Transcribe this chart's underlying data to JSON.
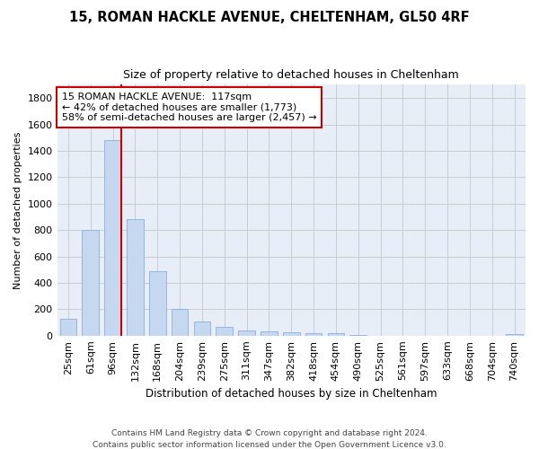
{
  "title": "15, ROMAN HACKLE AVENUE, CHELTENHAM, GL50 4RF",
  "subtitle": "Size of property relative to detached houses in Cheltenham",
  "xlabel": "Distribution of detached houses by size in Cheltenham",
  "ylabel": "Number of detached properties",
  "bar_color": "#c5d8f0",
  "bar_edgecolor": "#8ab0d8",
  "grid_color": "#cccccc",
  "background_color": "#ffffff",
  "plot_bg_color": "#e8eef8",
  "categories": [
    "25sqm",
    "61sqm",
    "96sqm",
    "132sqm",
    "168sqm",
    "204sqm",
    "239sqm",
    "275sqm",
    "311sqm",
    "347sqm",
    "382sqm",
    "418sqm",
    "454sqm",
    "490sqm",
    "525sqm",
    "561sqm",
    "597sqm",
    "633sqm",
    "668sqm",
    "704sqm",
    "740sqm"
  ],
  "values": [
    125,
    800,
    1480,
    880,
    490,
    205,
    105,
    65,
    40,
    33,
    25,
    22,
    18,
    5,
    0,
    0,
    0,
    0,
    0,
    0,
    15
  ],
  "ylim": [
    0,
    1900
  ],
  "yticks": [
    0,
    200,
    400,
    600,
    800,
    1000,
    1200,
    1400,
    1600,
    1800
  ],
  "property_line_bin": 2,
  "annotation_title": "15 ROMAN HACKLE AVENUE:  117sqm",
  "annotation_line1": "← 42% of detached houses are smaller (1,773)",
  "annotation_line2": "58% of semi-detached houses are larger (2,457) →",
  "annotation_box_color": "#ffffff",
  "annotation_box_edgecolor": "#cc0000",
  "footer1": "Contains HM Land Registry data © Crown copyright and database right 2024.",
  "footer2": "Contains public sector information licensed under the Open Government Licence v3.0."
}
